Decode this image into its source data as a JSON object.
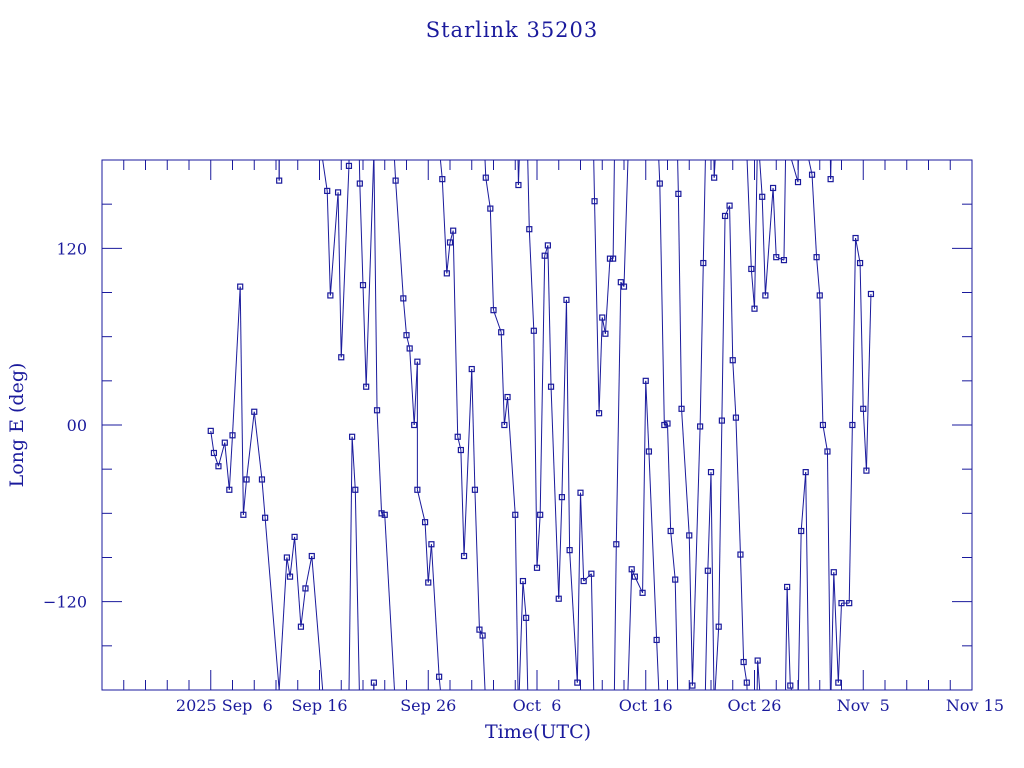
{
  "chart_data": {
    "type": "line",
    "title": "Starlink 35203",
    "xlabel": "Time(UTC)",
    "ylabel": "Long E (deg)",
    "xlim": [
      "2025-08-27",
      "2025-11-15"
    ],
    "ylim": [
      -180,
      180
    ],
    "x_ticks": [
      "2025 Sep  6",
      "Sep 16",
      "Sep 26",
      "Oct  6",
      "Oct 16",
      "Oct 26",
      "Nov  5",
      "Nov 15"
    ],
    "y_ticks": [
      "120",
      "00",
      "−120"
    ],
    "color": "#1a1a9c",
    "grid": false,
    "series": [
      {
        "points": [
          [
            "2025-09-06 00:00",
            -4
          ],
          [
            "2025-09-06 07:00",
            -19
          ],
          [
            "2025-09-06 17:00",
            -28
          ],
          [
            "2025-09-07 07:00",
            -12
          ],
          [
            "2025-09-07 17:00",
            -44
          ],
          [
            "2025-09-08 00:00",
            -7
          ],
          [
            "2025-09-08 17:00",
            94
          ],
          [
            "2025-09-09 00:00",
            -61
          ],
          [
            "2025-09-09 07:00",
            -37
          ],
          [
            "2025-09-10 00:00",
            9
          ],
          [
            "2025-09-10 17:00",
            -37
          ],
          [
            "2025-09-11 00:00",
            -63
          ],
          [
            "2025-09-12 07:00",
            -180
          ],
          [
            "2025-09-12 07:00",
            180
          ],
          [
            "2025-09-12 07:00",
            166
          ],
          [
            "2025-09-12 07:00",
            -180
          ],
          [
            "2025-09-12 07:00",
            -180
          ],
          [
            "2025-09-13 00:00",
            -90
          ],
          [
            "2025-09-13 07:00",
            -103
          ],
          [
            "2025-09-13 17:00",
            -76
          ],
          [
            "2025-09-14 07:00",
            -137
          ],
          [
            "2025-09-14 17:00",
            -111
          ],
          [
            "2025-09-15 07:00",
            -89
          ],
          [
            "2025-09-16 07:00",
            -180
          ],
          [
            "2025-09-16 07:00",
            180
          ],
          [
            "2025-09-16 17:00",
            159
          ],
          [
            "2025-09-17 00:00",
            88
          ],
          [
            "2025-09-17 17:00",
            158
          ],
          [
            "2025-09-18 00:00",
            46
          ],
          [
            "2025-09-18 17:00",
            176
          ],
          [
            "2025-09-19 00:00",
            -8
          ],
          [
            "2025-09-19 07:00",
            -44
          ],
          [
            "2025-09-19 17:00",
            164
          ],
          [
            "2025-09-20 00:00",
            95
          ],
          [
            "2025-09-20 07:00",
            26
          ],
          [
            "2025-09-21 00:00",
            -175
          ],
          [
            "2025-09-21 07:00",
            10
          ],
          [
            "2025-09-21 17:00",
            -60
          ],
          [
            "2025-09-22 00:00",
            -61
          ],
          [
            "2025-09-23 00:00",
            166
          ],
          [
            "2025-09-23 17:00",
            86
          ],
          [
            "2025-09-24 00:00",
            61
          ],
          [
            "2025-09-24 07:00",
            52
          ],
          [
            "2025-09-24 17:00",
            0
          ],
          [
            "2025-09-25 00:00",
            43
          ],
          [
            "2025-09-25 00:00",
            -44
          ],
          [
            "2025-09-25 17:00",
            -66
          ],
          [
            "2025-09-26 00:00",
            -107
          ],
          [
            "2025-09-26 07:00",
            -81
          ],
          [
            "2025-09-27 00:00",
            -171
          ],
          [
            "2025-09-27 07:00",
            167
          ],
          [
            "2025-09-27 17:00",
            103
          ],
          [
            "2025-09-28 00:00",
            124
          ],
          [
            "2025-09-28 07:00",
            132
          ],
          [
            "2025-09-28 17:00",
            -8
          ],
          [
            "2025-09-29 00:00",
            -17
          ],
          [
            "2025-09-29 07:00",
            -89
          ],
          [
            "2025-09-30 00:00",
            38
          ],
          [
            "2025-09-30 07:00",
            -44
          ],
          [
            "2025-09-30 17:00",
            -139
          ],
          [
            "2025-10-01 00:00",
            -143
          ],
          [
            "2025-10-01 07:00",
            168
          ],
          [
            "2025-10-01 17:00",
            147
          ],
          [
            "2025-10-02 00:00",
            78
          ],
          [
            "2025-10-02 17:00",
            63
          ],
          [
            "2025-10-03 00:00",
            0
          ],
          [
            "2025-10-03 07:00",
            19
          ],
          [
            "2025-10-04 00:00",
            -61
          ],
          [
            "2025-10-04 07:00",
            163
          ],
          [
            "2025-10-04 17:00",
            -106
          ],
          [
            "2025-10-05 00:00",
            -131
          ],
          [
            "2025-10-05 07:00",
            133
          ],
          [
            "2025-10-05 17:00",
            64
          ],
          [
            "2025-10-06 00:00",
            -97
          ],
          [
            "2025-10-06 07:00",
            -61
          ],
          [
            "2025-10-06 17:00",
            115
          ],
          [
            "2025-10-07 00:00",
            122
          ],
          [
            "2025-10-07 07:00",
            26
          ],
          [
            "2025-10-08 00:00",
            -118
          ],
          [
            "2025-10-08 07:00",
            -49
          ],
          [
            "2025-10-08 17:00",
            85
          ],
          [
            "2025-10-09 00:00",
            -85
          ],
          [
            "2025-10-09 17:00",
            -175
          ],
          [
            "2025-10-10 00:00",
            -46
          ],
          [
            "2025-10-10 07:00",
            -106
          ],
          [
            "2025-10-11 00:00",
            -101
          ],
          [
            "2025-10-11 07:00",
            152
          ],
          [
            "2025-10-11 17:00",
            8
          ],
          [
            "2025-10-12 00:00",
            73
          ],
          [
            "2025-10-12 07:00",
            62
          ],
          [
            "2025-10-12 17:00",
            113
          ],
          [
            "2025-10-13 00:00",
            113
          ],
          [
            "2025-10-13 07:00",
            -81
          ],
          [
            "2025-10-13 17:00",
            97
          ],
          [
            "2025-10-14 00:00",
            94
          ],
          [
            "2025-10-14 17:00",
            -98
          ],
          [
            "2025-10-15 00:00",
            -103
          ],
          [
            "2025-10-15 17:00",
            -114
          ],
          [
            "2025-10-16 00:00",
            30
          ],
          [
            "2025-10-16 07:00",
            -18
          ],
          [
            "2025-10-17 00:00",
            -146
          ],
          [
            "2025-10-17 07:00",
            164
          ],
          [
            "2025-10-17 17:00",
            0
          ],
          [
            "2025-10-18 00:00",
            1
          ],
          [
            "2025-10-18 07:00",
            -72
          ],
          [
            "2025-10-18 17:00",
            -105
          ],
          [
            "2025-10-19 00:00",
            157
          ],
          [
            "2025-10-19 07:00",
            11
          ],
          [
            "2025-10-20 00:00",
            -75
          ],
          [
            "2025-10-20 07:00",
            -177
          ],
          [
            "2025-10-21 00:00",
            -1
          ],
          [
            "2025-10-21 07:00",
            110
          ],
          [
            "2025-10-21 17:00",
            -99
          ],
          [
            "2025-10-22 00:00",
            -32
          ],
          [
            "2025-10-22 07:00",
            168
          ],
          [
            "2025-10-22 17:00",
            -137
          ],
          [
            "2025-10-23 00:00",
            3
          ],
          [
            "2025-10-23 07:00",
            142
          ],
          [
            "2025-10-23 17:00",
            149
          ],
          [
            "2025-10-24 00:00",
            44
          ],
          [
            "2025-10-24 07:00",
            5
          ],
          [
            "2025-10-24 17:00",
            -88
          ],
          [
            "2025-10-25 00:00",
            -161
          ],
          [
            "2025-10-25 07:00",
            -175
          ],
          [
            "2025-10-25 17:00",
            106
          ],
          [
            "2025-10-26 00:00",
            79
          ],
          [
            "2025-10-26 07:00",
            -160
          ],
          [
            "2025-10-26 17:00",
            155
          ],
          [
            "2025-10-27 00:00",
            88
          ],
          [
            "2025-10-27 17:00",
            161
          ],
          [
            "2025-10-28 00:00",
            114
          ],
          [
            "2025-10-28 17:00",
            112
          ],
          [
            "2025-10-29 00:00",
            -110
          ],
          [
            "2025-10-29 07:00",
            -177
          ],
          [
            "2025-10-30 00:00",
            165
          ],
          [
            "2025-10-30 07:00",
            -72
          ],
          [
            "2025-10-30 17:00",
            -32
          ],
          [
            "2025-10-31 00:00",
            180
          ],
          [
            "2025-10-31 00:00",
            -180
          ],
          [
            "2025-10-31 07:00",
            170
          ],
          [
            "2025-10-31 17:00",
            114
          ],
          [
            "2025-11-01 00:00",
            88
          ],
          [
            "2025-11-01 07:00",
            0
          ],
          [
            "2025-11-01 17:00",
            -18
          ],
          [
            "2025-11-02 00:00",
            167
          ],
          [
            "2025-11-02 07:00",
            -100
          ],
          [
            "2025-11-02 17:00",
            -175
          ],
          [
            "2025-11-03 00:00",
            -121
          ],
          [
            "2025-11-03 17:00",
            -121
          ],
          [
            "2025-11-04 00:00",
            0
          ],
          [
            "2025-11-04 07:00",
            127
          ],
          [
            "2025-11-04 17:00",
            110
          ],
          [
            "2025-11-05 00:00",
            11
          ],
          [
            "2025-11-05 07:00",
            -31
          ],
          [
            "2025-11-05 17:00",
            89
          ]
        ]
      }
    ]
  }
}
